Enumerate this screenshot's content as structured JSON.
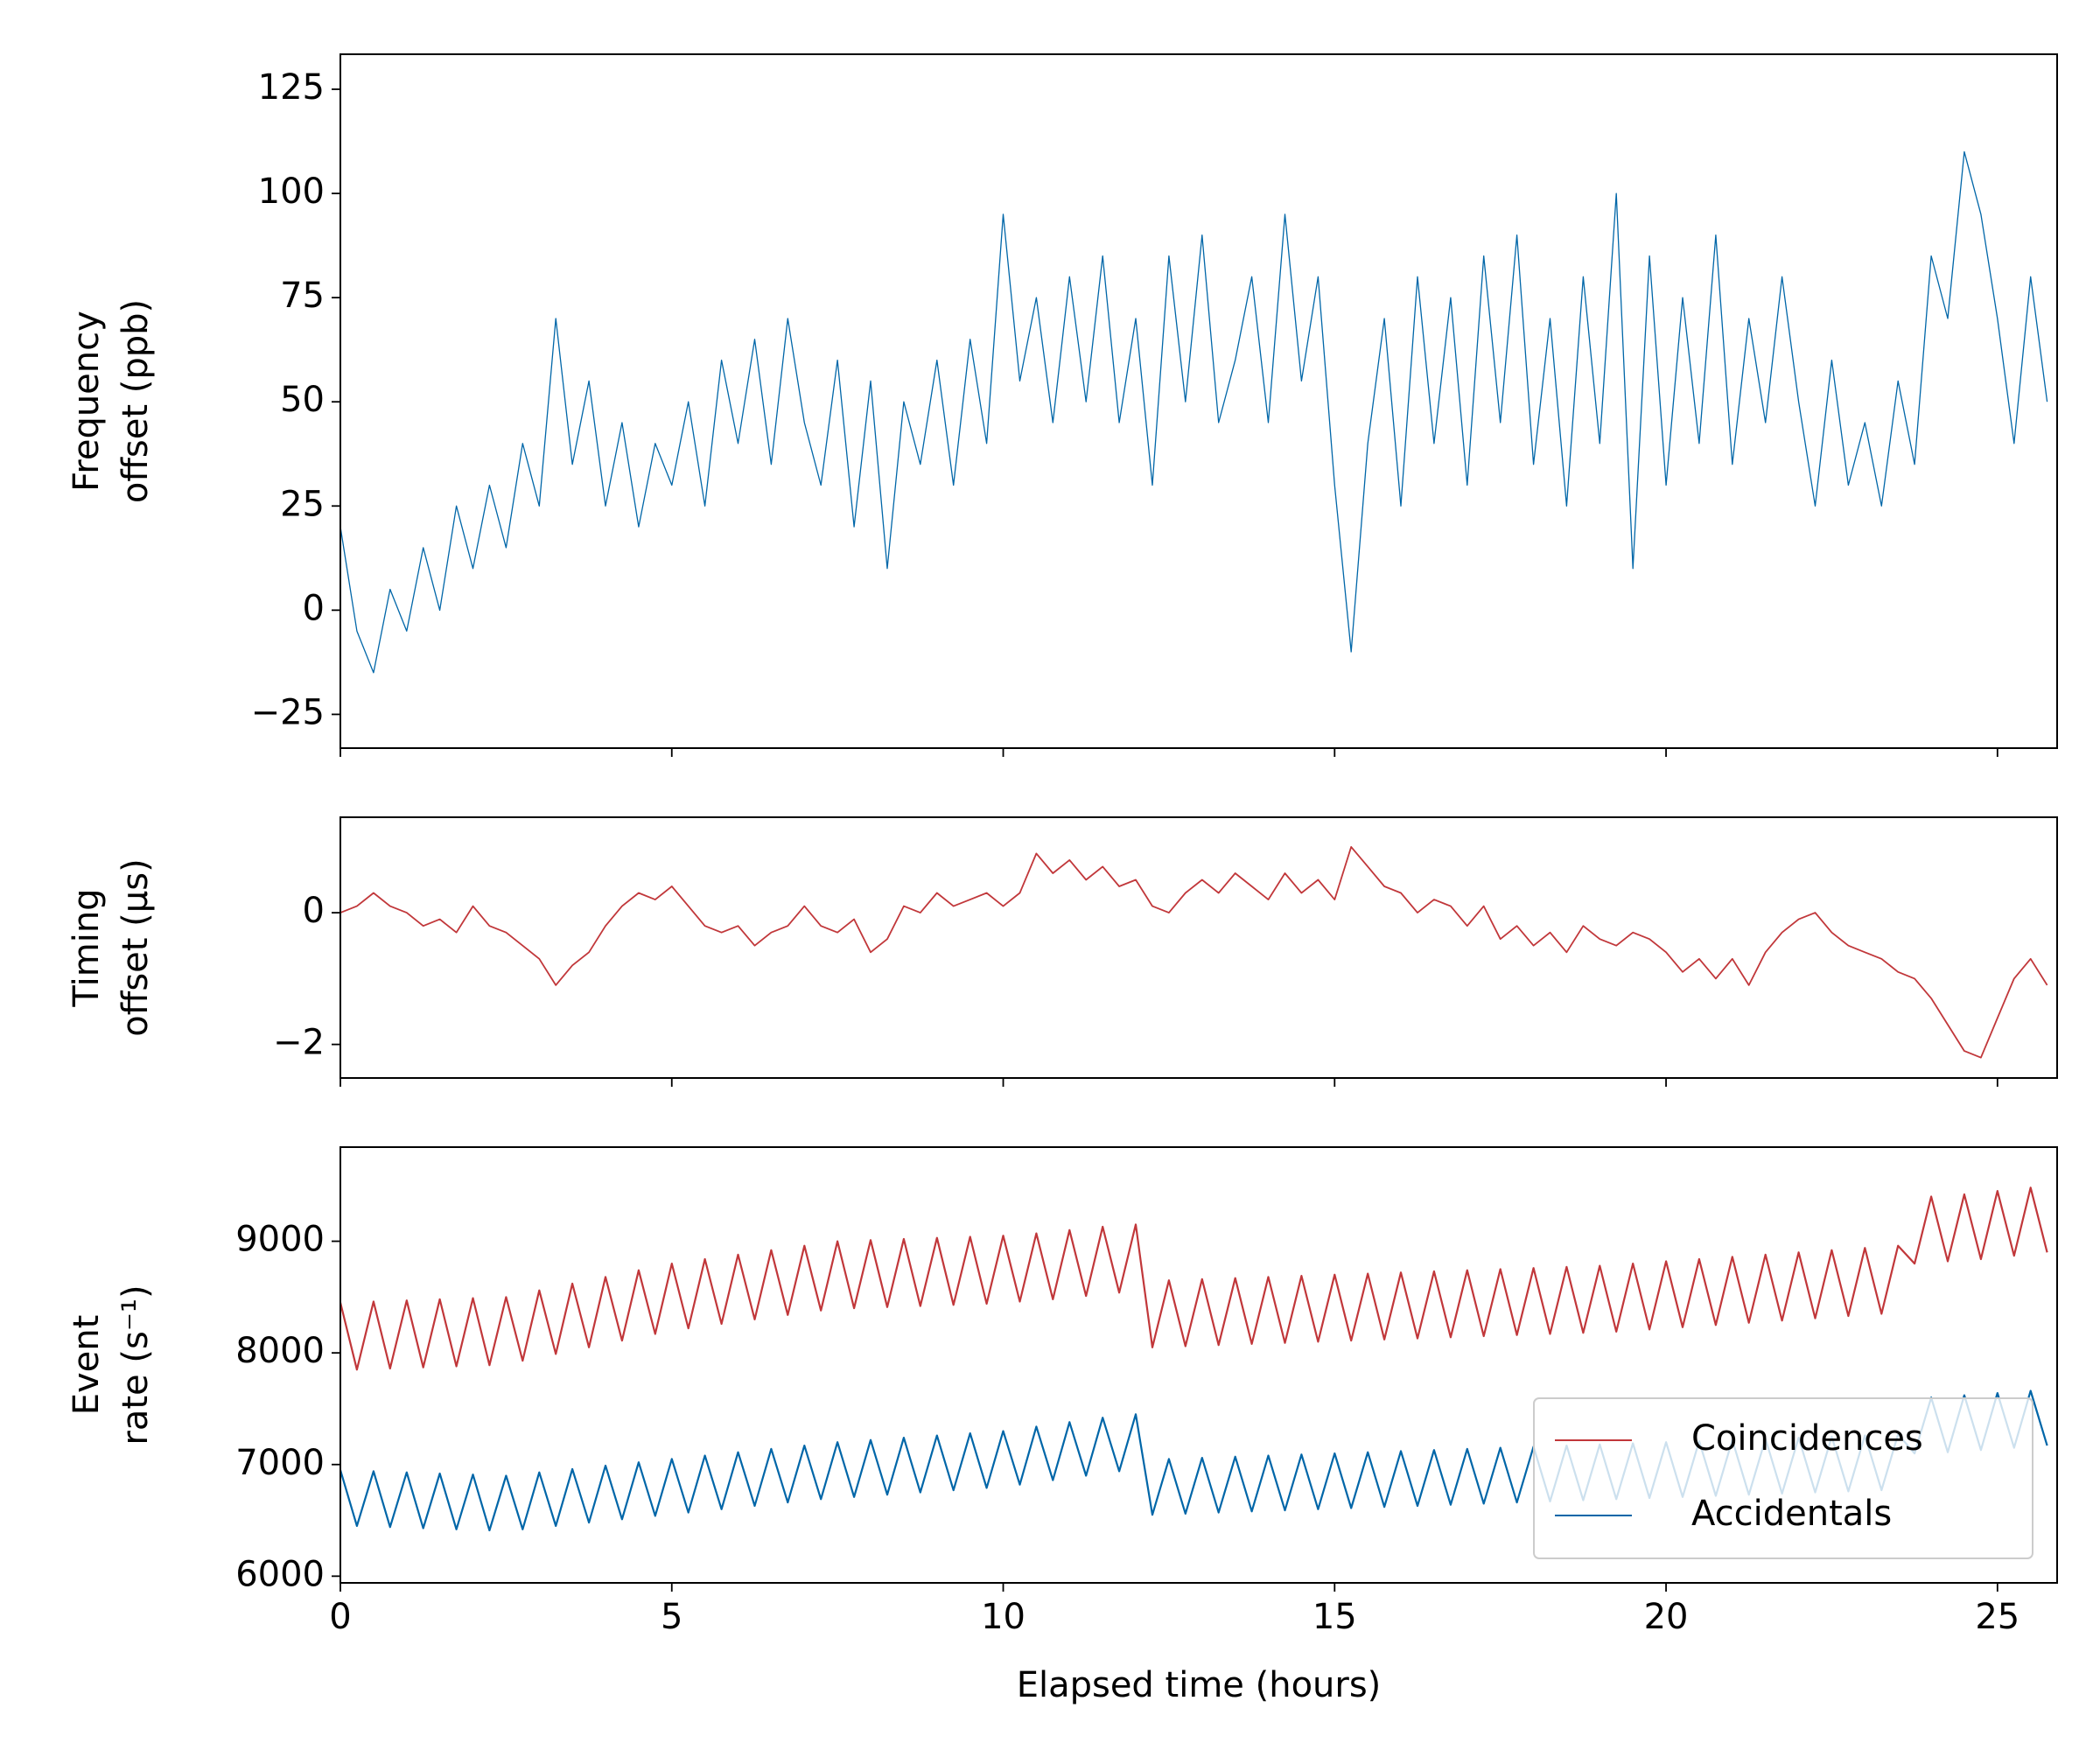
{
  "chart_data": [
    {
      "type": "line",
      "ylabel": [
        "Frequency",
        "offset (ppb)"
      ],
      "xlim": [
        0,
        25.9
      ],
      "ylim": [
        -33.1,
        133.4
      ],
      "xticks": [
        0,
        5,
        10,
        15,
        20,
        25
      ],
      "show_xticklabels": false,
      "yticks": [
        {
          "value": -25,
          "label": "−25"
        },
        0,
        25,
        50,
        75,
        100,
        125
      ],
      "x": [
        0,
        0.25,
        0.5,
        0.75,
        1,
        1.25,
        1.5,
        1.75,
        2,
        2.25,
        2.5,
        2.75,
        3,
        3.25,
        3.5,
        3.75,
        4,
        4.25,
        4.5,
        4.75,
        5,
        5.25,
        5.5,
        5.75,
        6,
        6.25,
        6.5,
        6.75,
        7,
        7.25,
        7.5,
        7.75,
        8,
        8.25,
        8.5,
        8.75,
        9,
        9.25,
        9.5,
        9.75,
        10,
        10.25,
        10.5,
        10.75,
        11,
        11.25,
        11.5,
        11.75,
        12,
        12.25,
        12.5,
        12.75,
        13,
        13.25,
        13.5,
        13.75,
        14,
        14.25,
        14.5,
        14.75,
        15,
        15.25,
        15.5,
        15.75,
        16,
        16.25,
        16.5,
        16.75,
        17,
        17.25,
        17.5,
        17.75,
        18,
        18.25,
        18.5,
        18.75,
        19,
        19.25,
        19.5,
        19.75,
        20,
        20.25,
        20.5,
        20.75,
        21,
        21.25,
        21.5,
        21.75,
        22,
        22.25,
        22.5,
        22.75,
        23,
        23.25,
        23.5,
        23.75,
        24,
        24.25,
        24.5,
        24.75,
        25,
        25.25,
        25.5,
        25.75
      ],
      "series": [
        {
          "color": "#0066a8",
          "width": 1.3,
          "values": [
            20,
            -5,
            -15,
            5,
            -5,
            15,
            0,
            25,
            10,
            30,
            15,
            40,
            25,
            70,
            35,
            55,
            25,
            45,
            20,
            40,
            30,
            50,
            25,
            60,
            40,
            65,
            35,
            70,
            45,
            30,
            60,
            20,
            55,
            10,
            50,
            35,
            60,
            30,
            65,
            40,
            95,
            55,
            75,
            45,
            80,
            50,
            85,
            45,
            70,
            30,
            85,
            50,
            90,
            45,
            60,
            80,
            45,
            95,
            55,
            80,
            30,
            -10,
            40,
            70,
            25,
            80,
            40,
            75,
            30,
            85,
            45,
            90,
            35,
            70,
            25,
            80,
            40,
            100,
            10,
            85,
            30,
            75,
            40,
            90,
            35,
            70,
            45,
            80,
            50,
            25,
            60,
            30,
            45,
            25,
            55,
            35,
            85,
            70,
            110,
            95,
            70,
            40,
            80,
            50
          ]
        }
      ]
    },
    {
      "type": "line",
      "ylabel": [
        "Timing",
        "offset (μs)"
      ],
      "xlim": [
        0,
        25.9
      ],
      "ylim": [
        -2.51,
        1.45
      ],
      "xticks": [
        0,
        5,
        10,
        15,
        20,
        25
      ],
      "show_xticklabels": false,
      "yticks": [
        {
          "value": -2,
          "label": "−2"
        },
        0
      ],
      "x": [
        0,
        0.25,
        0.5,
        0.75,
        1,
        1.25,
        1.5,
        1.75,
        2,
        2.25,
        2.5,
        2.75,
        3,
        3.25,
        3.5,
        3.75,
        4,
        4.25,
        4.5,
        4.75,
        5,
        5.25,
        5.5,
        5.75,
        6,
        6.25,
        6.5,
        6.75,
        7,
        7.25,
        7.5,
        7.75,
        8,
        8.25,
        8.5,
        8.75,
        9,
        9.25,
        9.5,
        9.75,
        10,
        10.25,
        10.5,
        10.75,
        11,
        11.25,
        11.5,
        11.75,
        12,
        12.25,
        12.5,
        12.75,
        13,
        13.25,
        13.5,
        13.75,
        14,
        14.25,
        14.5,
        14.75,
        15,
        15.25,
        15.5,
        15.75,
        16,
        16.25,
        16.5,
        16.75,
        17,
        17.25,
        17.5,
        17.75,
        18,
        18.25,
        18.5,
        18.75,
        19,
        19.25,
        19.5,
        19.75,
        20,
        20.25,
        20.5,
        20.75,
        21,
        21.25,
        21.5,
        21.75,
        22,
        22.25,
        22.5,
        22.75,
        23,
        23.25,
        23.5,
        23.75,
        24,
        24.25,
        24.5,
        24.75,
        25,
        25.25,
        25.5,
        25.75
      ],
      "series": [
        {
          "color": "#c1373a",
          "width": 1.8,
          "values": [
            0,
            0.1,
            0.3,
            0.1,
            0,
            -0.2,
            -0.1,
            -0.3,
            0.1,
            -0.2,
            -0.3,
            -0.5,
            -0.7,
            -1.1,
            -0.8,
            -0.6,
            -0.2,
            0.1,
            0.3,
            0.2,
            0.4,
            0.1,
            -0.2,
            -0.3,
            -0.2,
            -0.5,
            -0.3,
            -0.2,
            0.1,
            -0.2,
            -0.3,
            -0.1,
            -0.6,
            -0.4,
            0.1,
            0,
            0.3,
            0.1,
            0.2,
            0.3,
            0.1,
            0.3,
            0.9,
            0.6,
            0.8,
            0.5,
            0.7,
            0.4,
            0.5,
            0.1,
            0,
            0.3,
            0.5,
            0.3,
            0.6,
            0.4,
            0.2,
            0.6,
            0.3,
            0.5,
            0.2,
            1.0,
            0.7,
            0.4,
            0.3,
            0,
            0.2,
            0.1,
            -0.2,
            0.1,
            -0.4,
            -0.2,
            -0.5,
            -0.3,
            -0.6,
            -0.2,
            -0.4,
            -0.5,
            -0.3,
            -0.4,
            -0.6,
            -0.9,
            -0.7,
            -1.0,
            -0.7,
            -1.1,
            -0.6,
            -0.3,
            -0.1,
            0,
            -0.3,
            -0.5,
            -0.6,
            -0.7,
            -0.9,
            -1.0,
            -1.3,
            -1.7,
            -2.1,
            -2.2,
            -1.6,
            -1.0,
            -0.7,
            -1.1
          ]
        }
      ]
    },
    {
      "type": "line",
      "ylabel": [
        "Event",
        "rate (s⁻¹)"
      ],
      "xlabel": "Elapsed time (hours)",
      "xlim": [
        0,
        25.9
      ],
      "ylim": [
        5940,
        9843
      ],
      "xticks": [
        0,
        5,
        10,
        15,
        20,
        25
      ],
      "show_xticklabels": true,
      "yticks": [
        6000,
        7000,
        8000,
        9000
      ],
      "legend": "lower right",
      "x": [
        0,
        0.25,
        0.5,
        0.75,
        1,
        1.25,
        1.5,
        1.75,
        2,
        2.25,
        2.5,
        2.75,
        3,
        3.25,
        3.5,
        3.75,
        4,
        4.25,
        4.5,
        4.75,
        5,
        5.25,
        5.5,
        5.75,
        6,
        6.25,
        6.5,
        6.75,
        7,
        7.25,
        7.5,
        7.75,
        8,
        8.25,
        8.5,
        8.75,
        9,
        9.25,
        9.5,
        9.75,
        10,
        10.25,
        10.5,
        10.75,
        11,
        11.25,
        11.5,
        11.75,
        12,
        12.25,
        12.5,
        12.75,
        13,
        13.25,
        13.5,
        13.75,
        14,
        14.25,
        14.5,
        14.75,
        15,
        15.25,
        15.5,
        15.75,
        16,
        16.25,
        16.5,
        16.75,
        17,
        17.25,
        17.5,
        17.75,
        18,
        18.25,
        18.5,
        18.75,
        19,
        19.25,
        19.5,
        19.75,
        20,
        20.25,
        20.5,
        20.75,
        21,
        21.25,
        21.5,
        21.75,
        22,
        22.25,
        22.5,
        22.75,
        23,
        23.25,
        23.5,
        23.75,
        24,
        24.25,
        24.5,
        24.75,
        25,
        25.25,
        25.5,
        25.75
      ],
      "series": [
        {
          "name": "Coincidences",
          "color": "#c1373a",
          "width": 2.2,
          "values": [
            8450,
            7850,
            8460,
            7860,
            8470,
            7870,
            8480,
            7880,
            8490,
            7890,
            8500,
            7930,
            8560,
            7990,
            8620,
            8050,
            8680,
            8110,
            8740,
            8170,
            8800,
            8220,
            8840,
            8260,
            8880,
            8300,
            8920,
            8340,
            8960,
            8380,
            9000,
            8400,
            9010,
            8410,
            9020,
            8420,
            9030,
            8430,
            9040,
            8440,
            9050,
            8460,
            9070,
            8480,
            9100,
            8510,
            9130,
            8540,
            9150,
            8050,
            8650,
            8060,
            8660,
            8070,
            8670,
            8080,
            8680,
            8090,
            8690,
            8100,
            8700,
            8110,
            8710,
            8120,
            8720,
            8130,
            8730,
            8140,
            8740,
            8150,
            8750,
            8160,
            8760,
            8170,
            8770,
            8180,
            8780,
            8190,
            8800,
            8210,
            8820,
            8230,
            8840,
            8250,
            8860,
            8270,
            8880,
            8290,
            8900,
            8310,
            8920,
            8330,
            8940,
            8350,
            8960,
            8800,
            9400,
            8820,
            9420,
            8840,
            9450,
            8870,
            9480,
            8900
          ]
        },
        {
          "name": "Accidentals",
          "color": "#0066a8",
          "width": 2.2,
          "values": [
            6950,
            6450,
            6940,
            6440,
            6930,
            6430,
            6920,
            6420,
            6910,
            6410,
            6900,
            6420,
            6930,
            6450,
            6960,
            6480,
            6990,
            6510,
            7020,
            6540,
            7050,
            6570,
            7080,
            6600,
            7110,
            6630,
            7140,
            6660,
            7170,
            6690,
            7200,
            6710,
            7220,
            6730,
            7240,
            6750,
            7260,
            6770,
            7280,
            6790,
            7300,
            6820,
            7340,
            6860,
            7380,
            6900,
            7420,
            6940,
            7450,
            6550,
            7050,
            6560,
            7060,
            6570,
            7070,
            6580,
            7080,
            6590,
            7090,
            6600,
            7100,
            6610,
            7110,
            6620,
            7120,
            6630,
            7130,
            6640,
            7140,
            6650,
            7150,
            6660,
            7160,
            6670,
            7170,
            6680,
            7180,
            6690,
            7190,
            6700,
            7200,
            6710,
            7210,
            6720,
            7220,
            6730,
            7230,
            6740,
            7240,
            6750,
            7250,
            6760,
            7260,
            6770,
            7270,
            7100,
            7600,
            7110,
            7620,
            7130,
            7640,
            7150,
            7660,
            7170
          ]
        }
      ]
    }
  ]
}
